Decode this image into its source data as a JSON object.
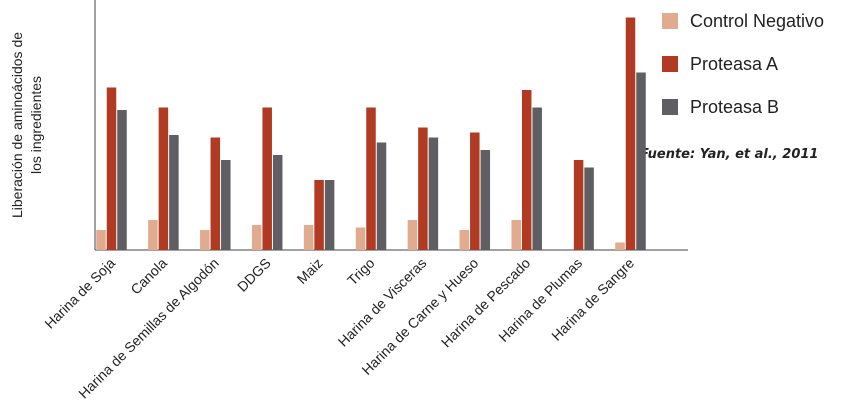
{
  "chart_data": {
    "type": "bar",
    "ylabel": [
      "Liberación de aminoácidos de",
      "los ingredientes"
    ],
    "source": "Fuente: Yan, et al., 2011",
    "categories": [
      "Harina de Soja",
      "Canola",
      "Harina de Semillas de Algodón",
      "DDGS",
      "Maiz",
      "Trigo",
      "Harina de Visceras",
      "Harina de Carne y Hueso",
      "Harina de Pescado",
      "Harina de Plumas",
      "Harina de Sangre"
    ],
    "series": [
      {
        "name": "Control Negativo",
        "color": "#e0ab8e",
        "values": [
          8,
          12,
          8,
          10,
          10,
          9,
          12,
          8,
          12,
          0,
          3
        ]
      },
      {
        "name": "Proteasa A",
        "color": "#b03a22",
        "values": [
          65,
          57,
          45,
          57,
          28,
          57,
          49,
          47,
          64,
          36,
          93
        ]
      },
      {
        "name": "Proteasa B",
        "color": "#5f5f63",
        "values": [
          56,
          46,
          36,
          38,
          28,
          43,
          45,
          40,
          57,
          33,
          71
        ]
      }
    ],
    "ylim": [
      0,
      100
    ]
  }
}
